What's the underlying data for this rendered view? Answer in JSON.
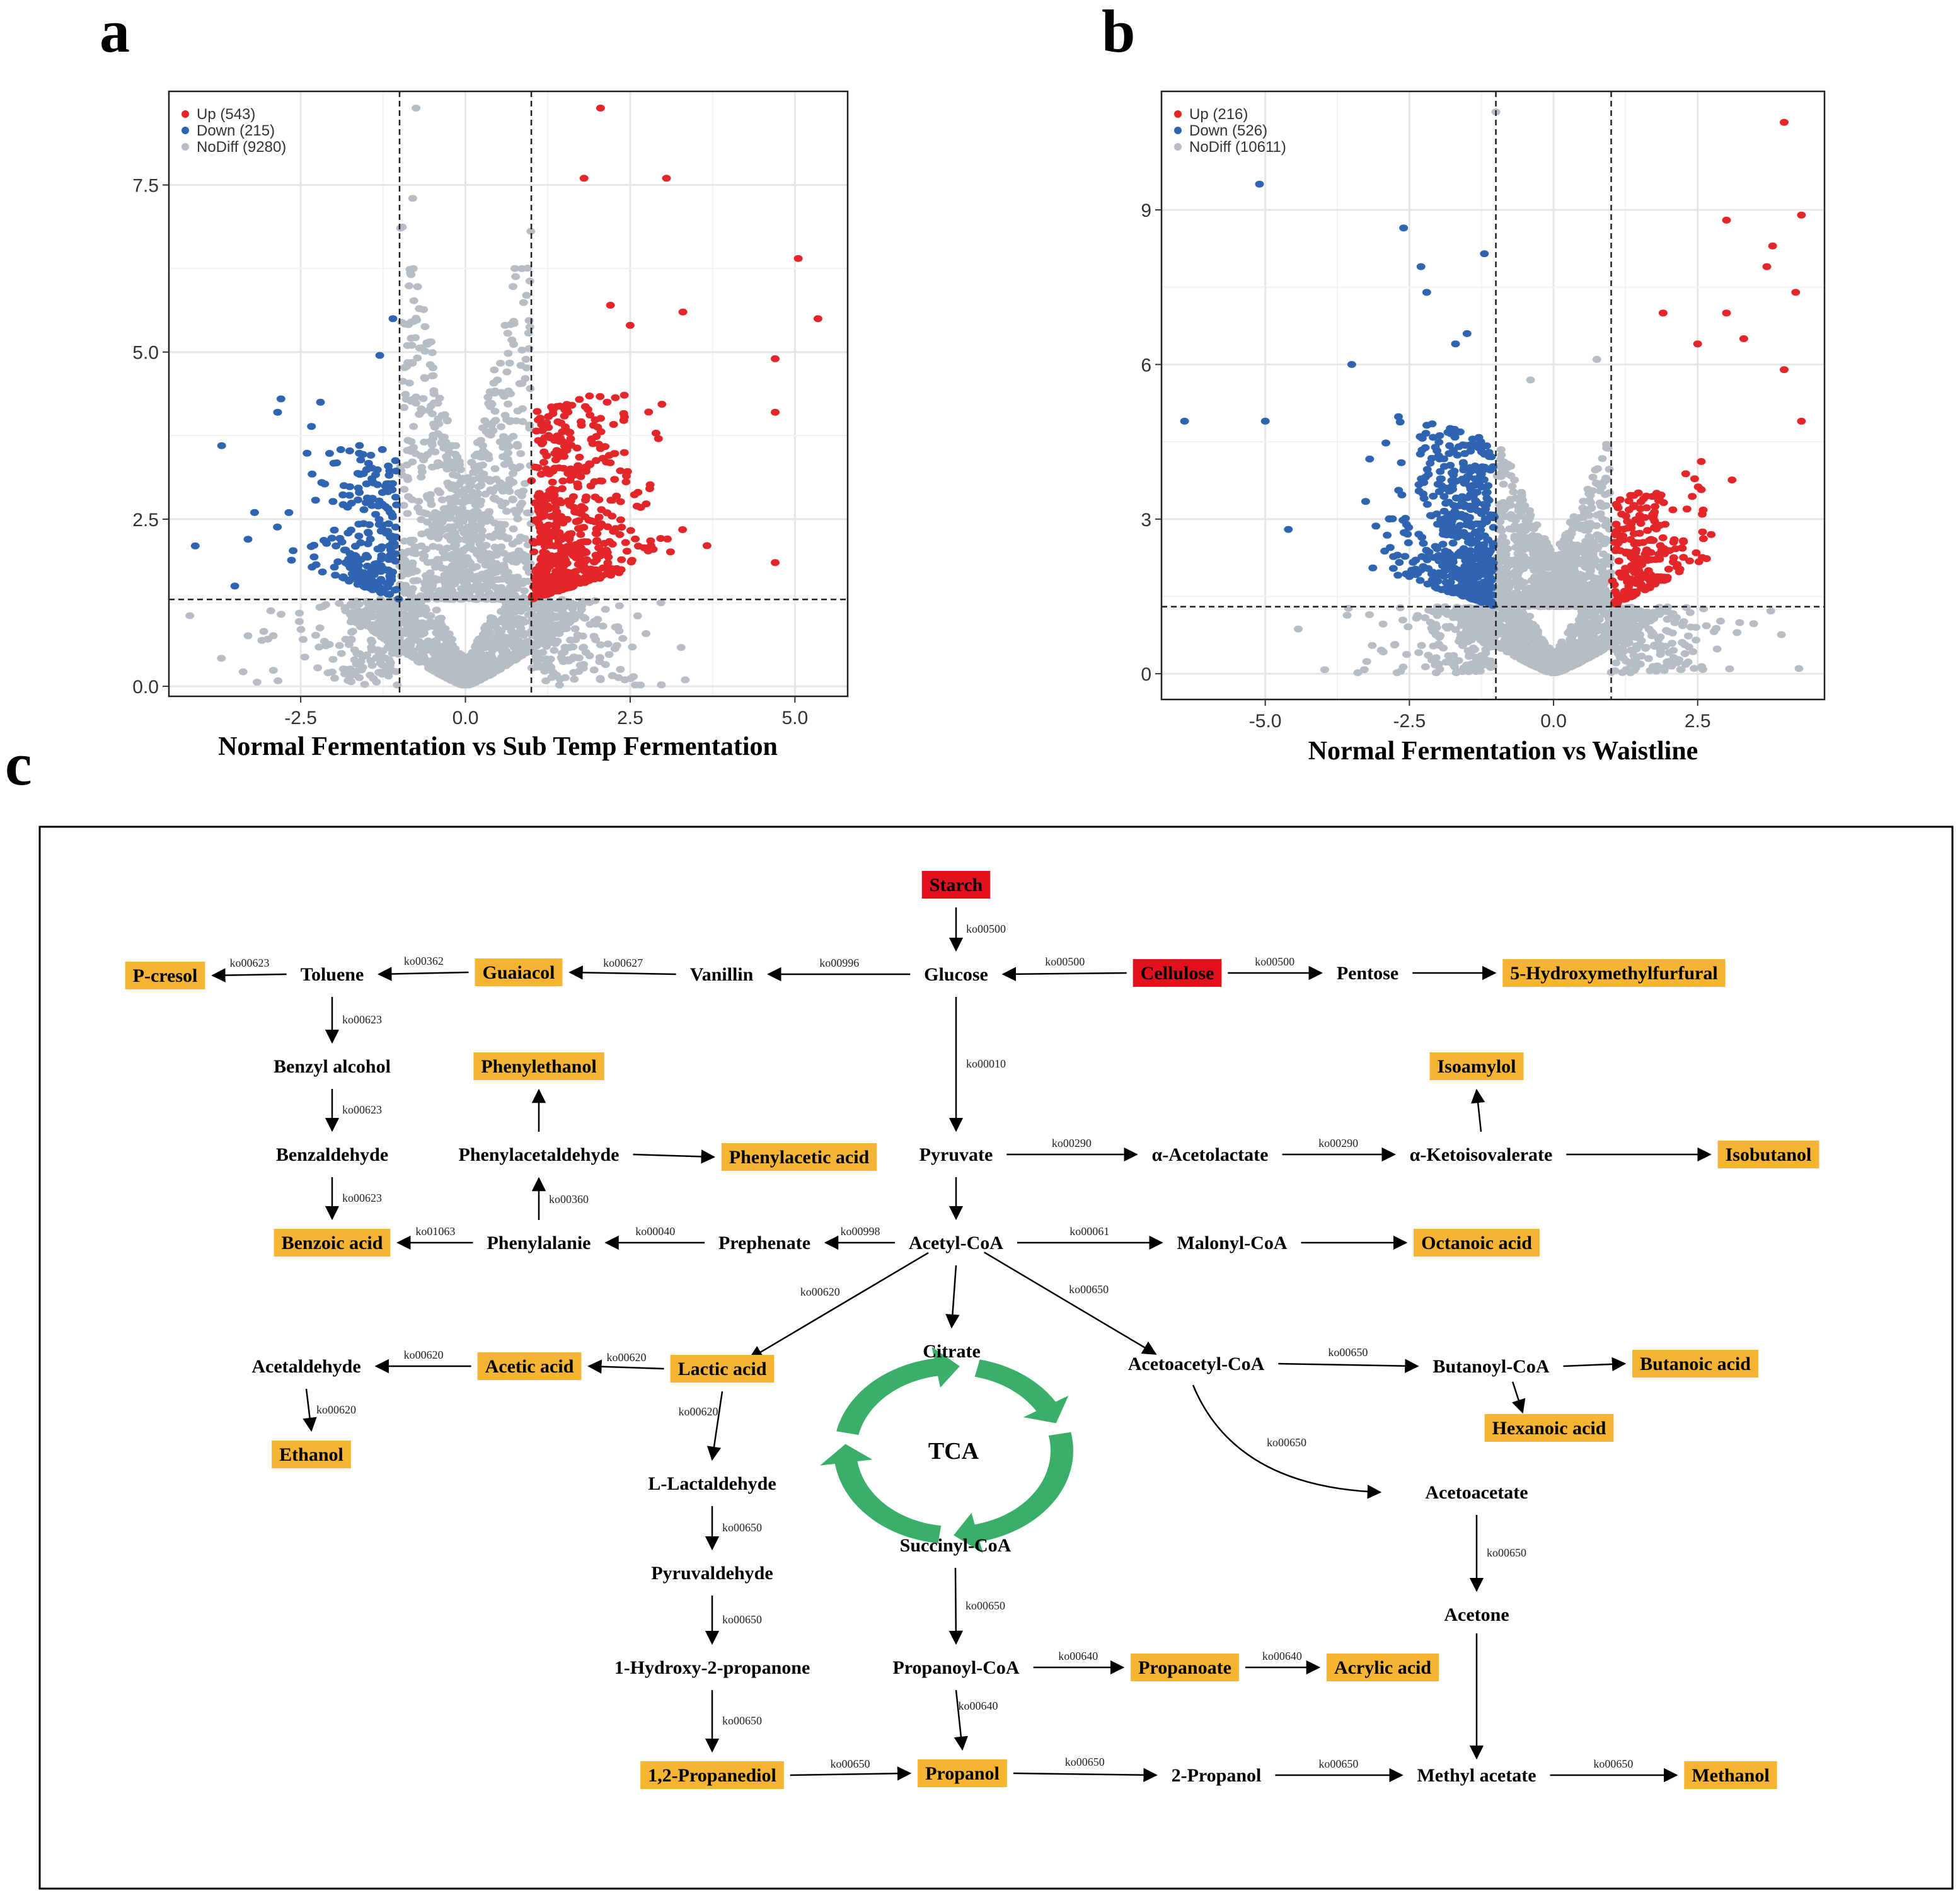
{
  "panels": {
    "a": "a",
    "b": "b",
    "c": "c"
  },
  "colors": {
    "up": "#e3262a",
    "down": "#2e64b0",
    "nodiff": "#b6bdc5",
    "highlight": "#f5b532",
    "source": "#e2111d",
    "tca": "#3aaf6a"
  },
  "chart_data": [
    {
      "type": "scatter",
      "panel": "a",
      "xlabel": "Normal Fermentation  vs  Sub Temp Fermentation",
      "ylabel": "",
      "xlim": [
        -4.5,
        5.8
      ],
      "ylim": [
        -0.15,
        8.9
      ],
      "xticks": [
        "-2.5",
        "0.0",
        "2.5",
        "5.0"
      ],
      "xtick_values": [
        -2.5,
        0,
        2.5,
        5
      ],
      "yticks": [
        "0.0",
        "2.5",
        "5.0",
        "7.5"
      ],
      "ytick_values": [
        0,
        2.5,
        5,
        7.5
      ],
      "thresholds": {
        "x": [
          -1,
          1
        ],
        "y": 1.3
      },
      "grid": true,
      "legend": {
        "placement": "top-left",
        "entries": [
          "Up (543)",
          "Down (215)",
          "NoDiff (9280)"
        ]
      },
      "series": [
        {
          "name": "Up (543)",
          "count": 543
        },
        {
          "name": "Down (215)",
          "count": 215
        },
        {
          "name": "NoDiff (9280)",
          "count": 9280
        }
      ],
      "highlight_points": {
        "up": [
          [
            2.05,
            8.65
          ],
          [
            1.8,
            7.6
          ],
          [
            3.05,
            7.6
          ],
          [
            5.05,
            6.4
          ],
          [
            5.35,
            5.5
          ],
          [
            4.7,
            4.9
          ],
          [
            4.7,
            4.1
          ],
          [
            4.7,
            1.85
          ],
          [
            3.3,
            5.6
          ],
          [
            2.5,
            5.4
          ],
          [
            2.2,
            5.7
          ]
        ],
        "down": [
          [
            -3.7,
            3.6
          ],
          [
            -4.1,
            2.1
          ],
          [
            -3.3,
            2.2
          ],
          [
            -2.8,
            4.3
          ],
          [
            -2.85,
            4.1
          ],
          [
            -2.2,
            4.25
          ],
          [
            -1.3,
            4.95
          ],
          [
            -1.1,
            5.5
          ],
          [
            -3.2,
            2.6
          ],
          [
            -3.5,
            1.5
          ]
        ],
        "nodiff": [
          [
            -0.75,
            8.65
          ],
          [
            -0.8,
            7.3
          ],
          [
            0.75,
            6.25
          ],
          [
            -0.55,
            5.15
          ],
          [
            0.6,
            5.4
          ],
          [
            -0.7,
            5.65
          ]
        ]
      }
    },
    {
      "type": "scatter",
      "panel": "b",
      "xlabel": "Normal Fermentation  vs  Waistline",
      "ylabel": "",
      "xlim": [
        -6.8,
        4.7
      ],
      "ylim": [
        -0.5,
        11.3
      ],
      "xticks": [
        "-5.0",
        "-2.5",
        "0.0",
        "2.5"
      ],
      "xtick_values": [
        -5,
        -2.5,
        0,
        2.5
      ],
      "yticks": [
        "0",
        "3",
        "6",
        "9"
      ],
      "ytick_values": [
        0,
        3,
        6,
        9
      ],
      "thresholds": {
        "x": [
          -1,
          1
        ],
        "y": 1.3
      },
      "grid": true,
      "legend": {
        "placement": "top-left",
        "entries": [
          "Up (216)",
          "Down (526)",
          "NoDiff (10611)"
        ]
      },
      "series": [
        {
          "name": "Up (216)",
          "count": 216
        },
        {
          "name": "Down (526)",
          "count": 526
        },
        {
          "name": "NoDiff (10611)",
          "count": 10611
        }
      ],
      "highlight_points": {
        "up": [
          [
            4.0,
            10.7
          ],
          [
            4.3,
            8.9
          ],
          [
            3.0,
            8.8
          ],
          [
            3.8,
            8.3
          ],
          [
            3.7,
            7.9
          ],
          [
            4.2,
            7.4
          ],
          [
            3.0,
            7.0
          ],
          [
            1.9,
            7.0
          ],
          [
            3.3,
            6.5
          ],
          [
            2.5,
            6.4
          ],
          [
            4.0,
            5.9
          ],
          [
            4.3,
            4.9
          ]
        ],
        "down": [
          [
            -5.1,
            9.5
          ],
          [
            -2.3,
            7.9
          ],
          [
            -2.2,
            7.4
          ],
          [
            -2.6,
            8.65
          ],
          [
            -1.2,
            8.15
          ],
          [
            -6.4,
            4.9
          ],
          [
            -5.0,
            4.9
          ],
          [
            -3.5,
            6.0
          ],
          [
            -1.5,
            6.6
          ],
          [
            -1.7,
            6.4
          ],
          [
            -4.6,
            2.8
          ]
        ],
        "nodiff": [
          [
            -1.0,
            10.9
          ],
          [
            0.75,
            6.1
          ],
          [
            -0.4,
            5.7
          ]
        ]
      }
    },
    {
      "type": "diagram",
      "panel": "c",
      "nodes": [
        {
          "id": "starch",
          "label": "Starch",
          "style": "source"
        },
        {
          "id": "glucose",
          "label": "Glucose",
          "style": "plain"
        },
        {
          "id": "cellulose",
          "label": "Cellulose",
          "style": "source"
        },
        {
          "id": "pentose",
          "label": "Pentose",
          "style": "plain"
        },
        {
          "id": "hmf",
          "label": "5-Hydroxymethylfurfural",
          "style": "highlight"
        },
        {
          "id": "vanillin",
          "label": "Vanillin",
          "style": "plain"
        },
        {
          "id": "guaiacol",
          "label": "Guaiacol",
          "style": "highlight"
        },
        {
          "id": "toluene",
          "label": "Toluene",
          "style": "plain"
        },
        {
          "id": "pcresol",
          "label": "P-cresol",
          "style": "highlight"
        },
        {
          "id": "benzylalcohol",
          "label": "Benzyl alcohol",
          "style": "plain"
        },
        {
          "id": "benzaldehyde",
          "label": "Benzaldehyde",
          "style": "plain"
        },
        {
          "id": "benzoicacid",
          "label": "Benzoic acid",
          "style": "highlight"
        },
        {
          "id": "phenylethanol",
          "label": "Phenylethanol",
          "style": "highlight"
        },
        {
          "id": "phenylacetaldehyde",
          "label": "Phenylacetaldehyde",
          "style": "plain"
        },
        {
          "id": "phenylaceticacid",
          "label": "Phenylacetic acid",
          "style": "highlight"
        },
        {
          "id": "phenylalanie",
          "label": "Phenylalanie",
          "style": "plain"
        },
        {
          "id": "prephenate",
          "label": "Prephenate",
          "style": "plain"
        },
        {
          "id": "pyruvate",
          "label": "Pyruvate",
          "style": "plain"
        },
        {
          "id": "acetolactate",
          "label": "α-Acetolactate",
          "style": "plain"
        },
        {
          "id": "ketoisovalerate",
          "label": "α-Ketoisovalerate",
          "style": "plain"
        },
        {
          "id": "isobutanol",
          "label": "Isobutanol",
          "style": "highlight"
        },
        {
          "id": "isoamylol",
          "label": "Isoamylol",
          "style": "highlight"
        },
        {
          "id": "acetylcoa",
          "label": "Acetyl-CoA",
          "style": "plain"
        },
        {
          "id": "malonylcoa",
          "label": "Malonyl-CoA",
          "style": "plain"
        },
        {
          "id": "octanoicacid",
          "label": "Octanoic acid",
          "style": "highlight"
        },
        {
          "id": "lacticacid",
          "label": "Lactic acid",
          "style": "highlight"
        },
        {
          "id": "aceticacid",
          "label": "Acetic acid",
          "style": "highlight"
        },
        {
          "id": "acetaldehyde",
          "label": "Acetaldehyde",
          "style": "plain"
        },
        {
          "id": "ethanol",
          "label": "Ethanol",
          "style": "highlight"
        },
        {
          "id": "citrate",
          "label": "Citrate",
          "style": "plain"
        },
        {
          "id": "tca",
          "label": "TCA",
          "style": "plain"
        },
        {
          "id": "succinylcoa",
          "label": "Succinyl-CoA",
          "style": "plain"
        },
        {
          "id": "acetoacetylcoa",
          "label": "Acetoacetyl-CoA",
          "style": "plain"
        },
        {
          "id": "butanoylcoa",
          "label": "Butanoyl-CoA",
          "style": "plain"
        },
        {
          "id": "butanoicacid",
          "label": "Butanoic acid",
          "style": "highlight"
        },
        {
          "id": "hexanoicacid",
          "label": "Hexanoic acid",
          "style": "highlight"
        },
        {
          "id": "acetoacetate",
          "label": "Acetoacetate",
          "style": "plain"
        },
        {
          "id": "acetone",
          "label": "Acetone",
          "style": "plain"
        },
        {
          "id": "llactaldehyde",
          "label": "L-Lactaldehyde",
          "style": "plain"
        },
        {
          "id": "pyruvaldehyde",
          "label": "Pyruvaldehyde",
          "style": "plain"
        },
        {
          "id": "hydroxypropanone",
          "label": "1-Hydroxy-2-propanone",
          "style": "plain"
        },
        {
          "id": "propanediol",
          "label": "1,2-Propanediol",
          "style": "highlight"
        },
        {
          "id": "propanoylcoa",
          "label": "Propanoyl-CoA",
          "style": "plain"
        },
        {
          "id": "propanoate",
          "label": "Propanoate",
          "style": "highlight"
        },
        {
          "id": "acrylicacid",
          "label": "Acrylic acid",
          "style": "highlight"
        },
        {
          "id": "propanol",
          "label": "Propanol",
          "style": "highlight"
        },
        {
          "id": "twopropanol",
          "label": "2-Propanol",
          "style": "plain"
        },
        {
          "id": "methylacetate",
          "label": "Methyl acetate",
          "style": "plain"
        },
        {
          "id": "methanol",
          "label": "Methanol",
          "style": "highlight"
        }
      ],
      "edges": [
        {
          "from": "starch",
          "to": "glucose",
          "label": "ko00500"
        },
        {
          "from": "cellulose",
          "to": "glucose",
          "label": "ko00500"
        },
        {
          "from": "cellulose",
          "to": "pentose",
          "label": "ko00500"
        },
        {
          "from": "pentose",
          "to": "hmf",
          "label": ""
        },
        {
          "from": "glucose",
          "to": "vanillin",
          "label": "ko00996"
        },
        {
          "from": "vanillin",
          "to": "guaiacol",
          "label": "ko00627"
        },
        {
          "from": "guaiacol",
          "to": "toluene",
          "label": "ko00362"
        },
        {
          "from": "toluene",
          "to": "pcresol",
          "label": "ko00623"
        },
        {
          "from": "toluene",
          "to": "benzylalcohol",
          "label": "ko00623"
        },
        {
          "from": "benzylalcohol",
          "to": "benzaldehyde",
          "label": "ko00623"
        },
        {
          "from": "benzaldehyde",
          "to": "benzoicacid",
          "label": "ko00623"
        },
        {
          "from": "glucose",
          "to": "pyruvate",
          "label": "ko00010"
        },
        {
          "from": "pyruvate",
          "to": "acetolactate",
          "label": "ko00290"
        },
        {
          "from": "acetolactate",
          "to": "ketoisovalerate",
          "label": "ko00290"
        },
        {
          "from": "ketoisovalerate",
          "to": "isobutanol",
          "label": ""
        },
        {
          "from": "ketoisovalerate",
          "to": "isoamylol",
          "label": ""
        },
        {
          "from": "pyruvate",
          "to": "acetylcoa",
          "label": ""
        },
        {
          "from": "acetylcoa",
          "to": "prephenate",
          "label": "ko00998"
        },
        {
          "from": "prephenate",
          "to": "phenylalanie",
          "label": "ko00040"
        },
        {
          "from": "phenylalanie",
          "to": "benzoicacid",
          "label": "ko01063"
        },
        {
          "from": "phenylalanie",
          "to": "phenylacetaldehyde",
          "label": "ko00360"
        },
        {
          "from": "phenylacetaldehyde",
          "to": "phenylethanol",
          "label": ""
        },
        {
          "from": "phenylacetaldehyde",
          "to": "phenylaceticacid",
          "label": ""
        },
        {
          "from": "acetylcoa",
          "to": "malonylcoa",
          "label": "ko00061"
        },
        {
          "from": "malonylcoa",
          "to": "octanoicacid",
          "label": ""
        },
        {
          "from": "acetylcoa",
          "to": "lacticacid",
          "label": "ko00620"
        },
        {
          "from": "acetylcoa",
          "to": "citrate",
          "label": ""
        },
        {
          "from": "acetylcoa",
          "to": "acetoacetylcoa",
          "label": "ko00650"
        },
        {
          "from": "lacticacid",
          "to": "aceticacid",
          "label": "ko00620"
        },
        {
          "from": "aceticacid",
          "to": "acetaldehyde",
          "label": "ko00620"
        },
        {
          "from": "acetaldehyde",
          "to": "ethanol",
          "label": "ko00620"
        },
        {
          "from": "lacticacid",
          "to": "llactaldehyde",
          "label": "ko00620"
        },
        {
          "from": "llactaldehyde",
          "to": "pyruvaldehyde",
          "label": "ko00650"
        },
        {
          "from": "pyruvaldehyde",
          "to": "hydroxypropanone",
          "label": "ko00650"
        },
        {
          "from": "hydroxypropanone",
          "to": "propanediol",
          "label": "ko00650"
        },
        {
          "from": "propanediol",
          "to": "propanol",
          "label": "ko00650"
        },
        {
          "from": "succinylcoa",
          "to": "propanoylcoa",
          "label": "ko00650"
        },
        {
          "from": "propanoylcoa",
          "to": "propanoate",
          "label": "ko00640"
        },
        {
          "from": "propanoate",
          "to": "acrylicacid",
          "label": "ko00640"
        },
        {
          "from": "propanoylcoa",
          "to": "propanol",
          "label": "ko00640"
        },
        {
          "from": "propanol",
          "to": "twopropanol",
          "label": "ko00650"
        },
        {
          "from": "twopropanol",
          "to": "methylacetate",
          "label": "ko00650"
        },
        {
          "from": "methylacetate",
          "to": "methanol",
          "label": "ko00650"
        },
        {
          "from": "acetoacetylcoa",
          "to": "butanoylcoa",
          "label": "ko00650"
        },
        {
          "from": "butanoylcoa",
          "to": "butanoicacid",
          "label": ""
        },
        {
          "from": "butanoylcoa",
          "to": "hexanoicacid",
          "label": ""
        },
        {
          "from": "acetoacetylcoa",
          "to": "acetoacetate",
          "label": "ko00650"
        },
        {
          "from": "acetoacetate",
          "to": "acetone",
          "label": "ko00650"
        },
        {
          "from": "acetone",
          "to": "methylacetate",
          "label": ""
        }
      ]
    }
  ]
}
